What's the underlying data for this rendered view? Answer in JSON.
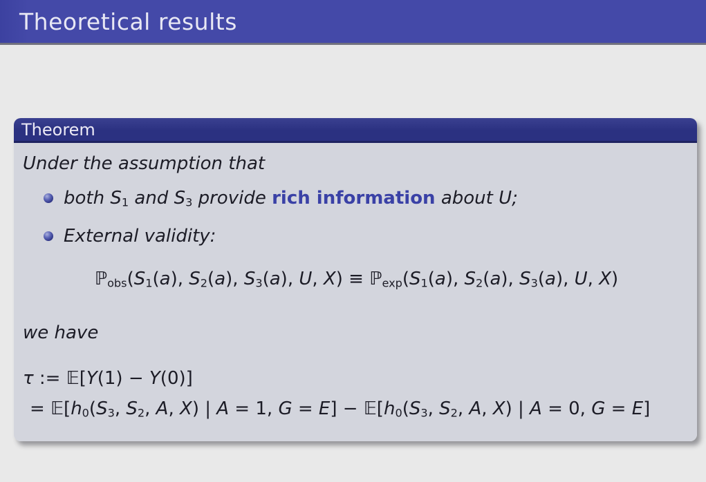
{
  "colors": {
    "title-bar": "#4449a8",
    "title-bar-edge": "#71717e",
    "theorem-header-bg": "#2b3181",
    "theorem-header-edge": "#1e2361",
    "theorem-body-bg": "#d3d5dd",
    "page-bg": "#e9e9e9",
    "text": "#1c1c26",
    "highlight": "#3a41a6",
    "title-text": "#e8e8f4"
  },
  "title_bar": {
    "title": "Theoretical results"
  },
  "theorem": {
    "header": "Theorem",
    "intro": "Under the assumption that",
    "bullets": [
      {
        "segments": [
          {
            "t": "both ",
            "c": "it"
          },
          {
            "t": "S",
            "c": "v"
          },
          {
            "t": "1",
            "c": "sub"
          },
          {
            "t": " and ",
            "c": "it"
          },
          {
            "t": "S",
            "c": "v"
          },
          {
            "t": "3",
            "c": "sub"
          },
          {
            "t": " provide ",
            "c": "it"
          },
          {
            "t": "rich information",
            "c": "hl"
          },
          {
            "t": " about ",
            "c": "it"
          },
          {
            "t": "U",
            "c": "v"
          },
          {
            "t": ";",
            "c": "it"
          }
        ]
      },
      {
        "segments": [
          {
            "t": "External validity:",
            "c": "it"
          }
        ]
      }
    ],
    "validity_equation": {
      "segments": [
        {
          "t": "ℙ",
          "c": "bb"
        },
        {
          "t": "obs",
          "c": "sub"
        },
        {
          "t": "("
        },
        {
          "t": "S",
          "c": "v"
        },
        {
          "t": "1",
          "c": "sub"
        },
        {
          "t": "("
        },
        {
          "t": "a",
          "c": "v"
        },
        {
          "t": "), "
        },
        {
          "t": "S",
          "c": "v"
        },
        {
          "t": "2",
          "c": "sub"
        },
        {
          "t": "("
        },
        {
          "t": "a",
          "c": "v"
        },
        {
          "t": "), "
        },
        {
          "t": "S",
          "c": "v"
        },
        {
          "t": "3",
          "c": "sub"
        },
        {
          "t": "("
        },
        {
          "t": "a",
          "c": "v"
        },
        {
          "t": "), "
        },
        {
          "t": "U",
          "c": "v"
        },
        {
          "t": ", "
        },
        {
          "t": "X",
          "c": "v"
        },
        {
          "t": ") ≡ "
        },
        {
          "t": "ℙ",
          "c": "bb"
        },
        {
          "t": "exp",
          "c": "sub"
        },
        {
          "t": "("
        },
        {
          "t": "S",
          "c": "v"
        },
        {
          "t": "1",
          "c": "sub"
        },
        {
          "t": "("
        },
        {
          "t": "a",
          "c": "v"
        },
        {
          "t": "), "
        },
        {
          "t": "S",
          "c": "v"
        },
        {
          "t": "2",
          "c": "sub"
        },
        {
          "t": "("
        },
        {
          "t": "a",
          "c": "v"
        },
        {
          "t": "), "
        },
        {
          "t": "S",
          "c": "v"
        },
        {
          "t": "3",
          "c": "sub"
        },
        {
          "t": "("
        },
        {
          "t": "a",
          "c": "v"
        },
        {
          "t": "), "
        },
        {
          "t": "U",
          "c": "v"
        },
        {
          "t": ", "
        },
        {
          "t": "X",
          "c": "v"
        },
        {
          "t": ")"
        }
      ]
    },
    "we_have": "we have",
    "tau_line1": {
      "segments": [
        {
          "t": "τ",
          "c": "v"
        },
        {
          "t": " := "
        },
        {
          "t": "𝔼",
          "c": "bb"
        },
        {
          "t": "["
        },
        {
          "t": "Y",
          "c": "v"
        },
        {
          "t": "(1) − "
        },
        {
          "t": "Y",
          "c": "v"
        },
        {
          "t": "(0)]"
        }
      ]
    },
    "tau_line2": {
      "segments": [
        {
          "t": "= "
        },
        {
          "t": "𝔼",
          "c": "bb"
        },
        {
          "t": "["
        },
        {
          "t": "h",
          "c": "v"
        },
        {
          "t": "0",
          "c": "sub"
        },
        {
          "t": "("
        },
        {
          "t": "S",
          "c": "v"
        },
        {
          "t": "3",
          "c": "sub"
        },
        {
          "t": ", "
        },
        {
          "t": "S",
          "c": "v"
        },
        {
          "t": "2",
          "c": "sub"
        },
        {
          "t": ", "
        },
        {
          "t": "A",
          "c": "v"
        },
        {
          "t": ", "
        },
        {
          "t": "X",
          "c": "v"
        },
        {
          "t": ") | "
        },
        {
          "t": "A",
          "c": "v"
        },
        {
          "t": " = 1, "
        },
        {
          "t": "G",
          "c": "v"
        },
        {
          "t": " = "
        },
        {
          "t": "E",
          "c": "v"
        },
        {
          "t": "] − "
        },
        {
          "t": "𝔼",
          "c": "bb"
        },
        {
          "t": "["
        },
        {
          "t": "h",
          "c": "v"
        },
        {
          "t": "0",
          "c": "sub"
        },
        {
          "t": "("
        },
        {
          "t": "S",
          "c": "v"
        },
        {
          "t": "3",
          "c": "sub"
        },
        {
          "t": ", "
        },
        {
          "t": "S",
          "c": "v"
        },
        {
          "t": "2",
          "c": "sub"
        },
        {
          "t": ", "
        },
        {
          "t": "A",
          "c": "v"
        },
        {
          "t": ", "
        },
        {
          "t": "X",
          "c": "v"
        },
        {
          "t": ") | "
        },
        {
          "t": "A",
          "c": "v"
        },
        {
          "t": " = 0, "
        },
        {
          "t": "G",
          "c": "v"
        },
        {
          "t": " = "
        },
        {
          "t": "E",
          "c": "v"
        },
        {
          "t": "]"
        }
      ]
    }
  }
}
